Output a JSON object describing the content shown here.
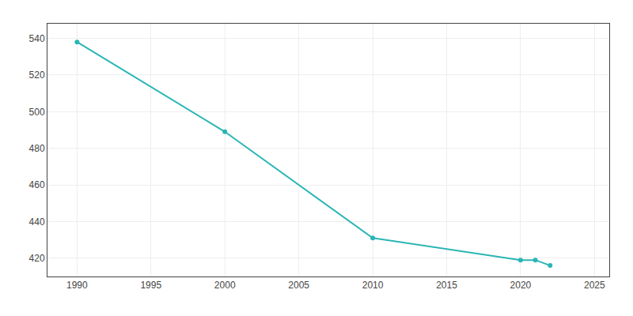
{
  "chart_data": {
    "type": "line",
    "x": [
      1990,
      2000,
      2010,
      2020,
      2021,
      2022
    ],
    "values": [
      538,
      489,
      431,
      419,
      419,
      416
    ],
    "color": "#2ab5b5",
    "marker": "circle",
    "line_style": "solid",
    "xlim": [
      1988,
      2026
    ],
    "ylim": [
      410,
      548
    ],
    "xticks": [
      1990,
      1995,
      2000,
      2005,
      2010,
      2015,
      2020,
      2025
    ],
    "yticks": [
      420,
      440,
      460,
      480,
      500,
      520,
      540
    ],
    "grid": true
  }
}
